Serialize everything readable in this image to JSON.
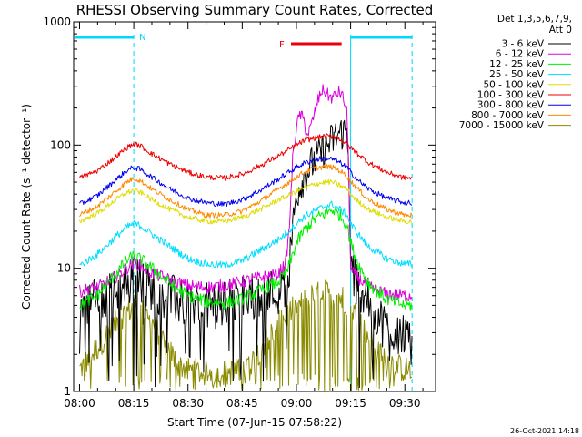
{
  "chart_data": {
    "type": "line",
    "title": "RHESSI Observing Summary Count Rates, Corrected",
    "xlabel": "Start Time (07-Jun-15 07:58:22)",
    "ylabel": "Corrected Count Rate (s⁻¹ detector⁻¹)",
    "y_scale": "log",
    "ylim": [
      1,
      1000
    ],
    "xlim_minutes": [
      -1.63,
      98.5
    ],
    "x_ticks": [
      {
        "label": "08:00",
        "minute": 0
      },
      {
        "label": "08:15",
        "minute": 15
      },
      {
        "label": "08:30",
        "minute": 30
      },
      {
        "label": "08:45",
        "minute": 45
      },
      {
        "label": "09:00",
        "minute": 60
      },
      {
        "label": "09:15",
        "minute": 75
      },
      {
        "label": "09:30",
        "minute": 90
      }
    ],
    "y_ticks": [
      {
        "label": "1",
        "value": 1
      },
      {
        "label": "10",
        "value": 10
      },
      {
        "label": "100",
        "value": 100
      },
      {
        "label": "1000",
        "value": 1000
      }
    ],
    "legend_header": [
      "Det 1,3,5,6,7,9,",
      "Att 0"
    ],
    "night_label": "N",
    "flare_label": "F",
    "night_intervals": [
      [
        -1.6,
        15.0
      ],
      [
        75.0,
        92.0
      ]
    ],
    "flare_interval": [
      58.5,
      72.5
    ],
    "annotation_colors": {
      "night": "#00d8ff",
      "flare": "#e8000b"
    },
    "series": [
      {
        "name": "3 - 6 keV",
        "color": "#000000",
        "x": [
          0,
          5,
          10,
          13,
          15,
          17,
          20,
          25,
          30,
          35,
          40,
          45,
          50,
          55,
          57,
          58,
          59,
          60,
          62,
          65,
          68,
          70,
          72,
          74,
          74.5,
          75,
          80,
          85,
          90,
          92
        ],
        "values": [
          5.2,
          5.5,
          6.2,
          7.4,
          8.0,
          7.6,
          7.0,
          5.8,
          5.0,
          4.9,
          5.1,
          5.6,
          6.2,
          6.5,
          7.0,
          10,
          22,
          40,
          55,
          75,
          95,
          110,
          125,
          130,
          90,
          9.5,
          5.3,
          3.2,
          3.0,
          3.1
        ]
      },
      {
        "name": "6 - 12 keV",
        "color": "#dd00dd",
        "x": [
          0,
          5,
          10,
          13,
          15,
          17,
          20,
          25,
          30,
          35,
          40,
          45,
          50,
          55,
          57,
          58,
          59,
          60,
          61,
          62,
          63,
          64,
          65,
          66,
          67,
          68,
          69,
          70,
          71,
          72,
          73,
          74,
          74.5,
          75,
          80,
          85,
          90,
          92
        ],
        "values": [
          6.5,
          7.0,
          8.5,
          10,
          11,
          10.5,
          9.2,
          8.0,
          7.2,
          7.0,
          7.2,
          7.8,
          8.4,
          9.0,
          11,
          20,
          80,
          140,
          180,
          160,
          120,
          140,
          180,
          230,
          280,
          270,
          250,
          240,
          260,
          270,
          240,
          180,
          60,
          9.5,
          7.0,
          6.2,
          6.0,
          6.0
        ]
      },
      {
        "name": "12 - 25 keV",
        "color": "#00ee00",
        "x": [
          0,
          5,
          10,
          13,
          15,
          17,
          20,
          25,
          30,
          35,
          40,
          45,
          50,
          55,
          57,
          58,
          59,
          60,
          62,
          65,
          68,
          70,
          72,
          74,
          75,
          77,
          80,
          85,
          90,
          92
        ],
        "values": [
          5.0,
          6.0,
          9.0,
          11.5,
          12.5,
          11.8,
          10.0,
          7.5,
          6.0,
          5.4,
          5.2,
          5.6,
          6.6,
          7.8,
          9.0,
          10.5,
          13,
          16,
          20,
          25,
          28,
          30,
          27,
          23,
          16,
          11,
          7.5,
          5.6,
          5.0,
          5.0
        ]
      },
      {
        "name": "25 - 50 keV",
        "color": "#00ddff",
        "x": [
          0,
          5,
          10,
          13,
          15,
          17,
          20,
          25,
          30,
          35,
          40,
          45,
          50,
          55,
          57,
          60,
          62,
          65,
          68,
          70,
          72,
          74,
          75,
          77,
          80,
          85,
          90,
          92
        ],
        "values": [
          10.5,
          13,
          18,
          21.5,
          23,
          22,
          19,
          15,
          12,
          10.8,
          10.6,
          11.5,
          14,
          17,
          19,
          23,
          26,
          29,
          32,
          33,
          30,
          27,
          23,
          19,
          15,
          12,
          10.8,
          10.8
        ]
      },
      {
        "name": "50 - 100 keV",
        "color": "#dddd00",
        "x": [
          0,
          5,
          10,
          13,
          15,
          17,
          20,
          25,
          30,
          35,
          40,
          45,
          50,
          55,
          57,
          60,
          62,
          65,
          68,
          70,
          72,
          74,
          75,
          77,
          80,
          85,
          90,
          92
        ],
        "values": [
          24,
          28,
          36,
          41,
          43,
          41,
          36,
          30,
          26,
          24,
          24,
          26,
          30,
          36,
          38,
          42,
          45,
          48,
          50,
          50,
          47,
          44,
          40,
          35,
          30,
          26,
          24,
          24
        ]
      },
      {
        "name": "100 - 300 keV",
        "color": "#ee0000",
        "x": [
          0,
          5,
          10,
          13,
          15,
          17,
          20,
          25,
          30,
          35,
          40,
          45,
          50,
          55,
          57,
          60,
          62,
          65,
          68,
          70,
          72,
          74,
          75,
          77,
          80,
          85,
          90,
          92
        ],
        "values": [
          54,
          62,
          80,
          95,
          102,
          98,
          85,
          70,
          60,
          55,
          54,
          58,
          68,
          82,
          88,
          100,
          108,
          114,
          118,
          118,
          112,
          102,
          95,
          85,
          72,
          60,
          54,
          54
        ]
      },
      {
        "name": "300 - 800 keV",
        "color": "#0000ee",
        "x": [
          0,
          5,
          10,
          13,
          15,
          17,
          20,
          25,
          30,
          35,
          40,
          45,
          50,
          55,
          57,
          60,
          62,
          65,
          68,
          70,
          72,
          74,
          75,
          77,
          80,
          85,
          90,
          92
        ],
        "values": [
          33,
          39,
          52,
          62,
          66,
          63,
          55,
          44,
          37,
          34,
          33,
          36,
          43,
          53,
          58,
          66,
          71,
          76,
          78,
          77,
          72,
          66,
          60,
          52,
          44,
          37,
          34,
          34
        ]
      },
      {
        "name": "800 - 7000 keV",
        "color": "#ff8800",
        "x": [
          0,
          5,
          10,
          13,
          15,
          17,
          20,
          25,
          30,
          35,
          40,
          45,
          50,
          55,
          57,
          60,
          62,
          65,
          68,
          70,
          72,
          74,
          75,
          77,
          80,
          85,
          90,
          92
        ],
        "values": [
          27,
          32,
          42,
          50,
          54,
          51,
          44,
          36,
          30,
          27,
          27,
          29,
          35,
          44,
          48,
          55,
          60,
          65,
          67,
          66,
          62,
          56,
          51,
          44,
          36,
          30,
          27,
          27
        ]
      },
      {
        "name": "7000 - 15000 keV",
        "color": "#8b8b00",
        "x": [
          0,
          3,
          6,
          9,
          12,
          14,
          15,
          17,
          20,
          23,
          25,
          27,
          30,
          35,
          40,
          45,
          48,
          50,
          53,
          56,
          59,
          62,
          65,
          68,
          71,
          73,
          75,
          77,
          79,
          82,
          85,
          88,
          90,
          92
        ],
        "values": [
          1.5,
          1.9,
          2.5,
          3.3,
          4.2,
          4.6,
          4.8,
          4.5,
          3.6,
          2.7,
          2.1,
          1.7,
          1.5,
          1.4,
          1.4,
          1.5,
          1.8,
          2.2,
          3.0,
          3.8,
          4.6,
          5.3,
          6.0,
          6.3,
          6.1,
          5.6,
          4.9,
          4.0,
          3.0,
          2.3,
          1.8,
          1.6,
          1.5,
          1.5
        ]
      }
    ],
    "grid": false,
    "legend_position": "right"
  },
  "footer": {
    "timestamp": "26-Oct-2021 14:18"
  }
}
